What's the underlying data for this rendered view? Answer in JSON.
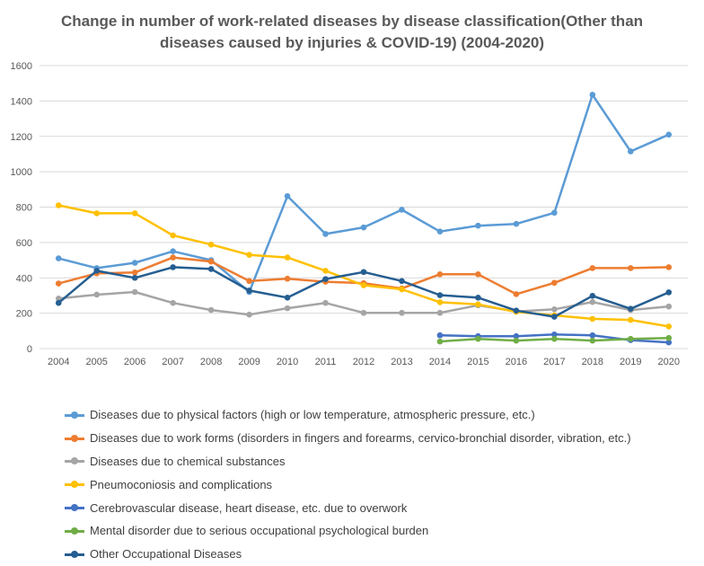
{
  "chart_data": {
    "type": "line",
    "title": "Change in number of work-related diseases by disease classification(Other than diseases caused by injuries & COVID-19) (2004-2020)",
    "title_lines": [
      "Change in number of work-related diseases by disease classification(Other than",
      "diseases caused by injuries & COVID-19) (2004-2020)"
    ],
    "xlabel": "",
    "ylabel": "",
    "x": [
      "2004",
      "2005",
      "2006",
      "2007",
      "2008",
      "2009",
      "2010",
      "2011",
      "2012",
      "2013",
      "2014",
      "2015",
      "2016",
      "2017",
      "2018",
      "2019",
      "2020"
    ],
    "ylim": [
      0,
      1600
    ],
    "yticks": [
      0,
      200,
      400,
      600,
      800,
      1000,
      1200,
      1400,
      1600
    ],
    "grid": true,
    "legend_position": "bottom",
    "series": [
      {
        "name": "Diseases due to physical factors (high or low temperature, atmospheric pressure, etc.)",
        "color": "#5B9BD5",
        "values": [
          510,
          455,
          485,
          550,
          500,
          320,
          862,
          648,
          685,
          785,
          662,
          695,
          705,
          768,
          1435,
          1115,
          1210
        ]
      },
      {
        "name": "Diseases due to work forms (disorders in fingers and forearms, cervico-bronchial disorder, vibration, etc.)",
        "color": "#ED7D31",
        "values": [
          368,
          425,
          430,
          515,
          492,
          382,
          395,
          378,
          370,
          340,
          420,
          420,
          308,
          372,
          455,
          455,
          460
        ]
      },
      {
        "name": "Diseases due to chemical substances",
        "color": "#A5A5A5",
        "values": [
          283,
          305,
          320,
          258,
          218,
          192,
          228,
          258,
          202,
          202,
          202,
          245,
          210,
          222,
          263,
          218,
          238
        ]
      },
      {
        "name": "Pneumoconiosis and complications",
        "color": "#FFC000",
        "values": [
          810,
          765,
          765,
          640,
          588,
          530,
          515,
          440,
          358,
          335,
          262,
          250,
          208,
          188,
          168,
          162,
          125
        ]
      },
      {
        "name": "Cerebrovascular disease, heart disease, etc. due to overwork",
        "color": "#4472C4",
        "values": [
          null,
          null,
          null,
          null,
          null,
          null,
          null,
          null,
          null,
          null,
          75,
          70,
          70,
          80,
          75,
          48,
          35
        ]
      },
      {
        "name": "Mental disorder due to serious occupational psychological burden",
        "color": "#70AD47",
        "values": [
          null,
          null,
          null,
          null,
          null,
          null,
          null,
          null,
          null,
          null,
          40,
          55,
          45,
          55,
          45,
          55,
          60
        ]
      },
      {
        "name": "Other Occupational Diseases",
        "color": "#255E91",
        "values": [
          258,
          440,
          400,
          460,
          450,
          328,
          288,
          393,
          433,
          382,
          302,
          288,
          215,
          180,
          298,
          225,
          318
        ]
      }
    ]
  }
}
